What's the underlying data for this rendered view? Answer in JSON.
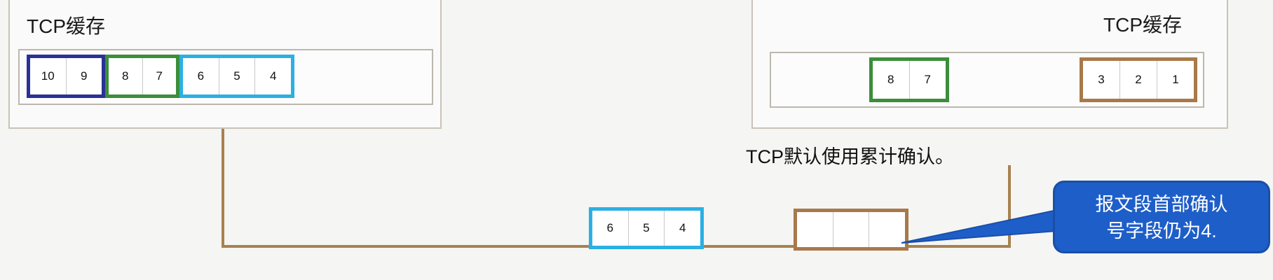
{
  "sender": {
    "title": "TCP缓存",
    "groups": [
      {
        "color": "#2a3196",
        "cells": [
          "10",
          "9"
        ]
      },
      {
        "color": "#3b8e3b",
        "cells": [
          "8",
          "7"
        ]
      },
      {
        "color": "#2bb0e3",
        "cells": [
          "6",
          "5",
          "4"
        ]
      }
    ]
  },
  "receiver": {
    "title": "TCP缓存",
    "groups": [
      {
        "color": "#3b8e3b",
        "cells": [
          "8",
          "7"
        ]
      },
      {
        "color": "#a8794a",
        "cells": [
          "3",
          "2",
          "1"
        ]
      }
    ]
  },
  "note": "TCP默认使用累计确认。",
  "link": {
    "data_segment": {
      "color": "#2bb0e3",
      "cells": [
        "6",
        "5",
        "4"
      ]
    },
    "ack_segment": {
      "color": "#a8794a",
      "cells": [
        "",
        "",
        ""
      ]
    }
  },
  "callout": {
    "line1": "报文段首部确认",
    "line2": "号字段仍为4."
  },
  "colors": {
    "wire": "#a8814f",
    "callout_fill": "#1e5ec8"
  }
}
